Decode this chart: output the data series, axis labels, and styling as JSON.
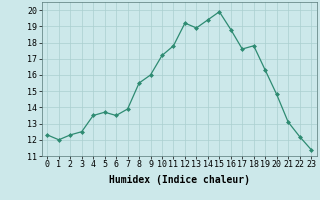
{
  "x": [
    0,
    1,
    2,
    3,
    4,
    5,
    6,
    7,
    8,
    9,
    10,
    11,
    12,
    13,
    14,
    15,
    16,
    17,
    18,
    19,
    20,
    21,
    22,
    23
  ],
  "y": [
    12.3,
    12.0,
    12.3,
    12.5,
    13.5,
    13.7,
    13.5,
    13.9,
    15.5,
    16.0,
    17.2,
    17.8,
    19.2,
    18.9,
    19.4,
    19.9,
    18.8,
    17.6,
    17.8,
    16.3,
    14.8,
    13.1,
    12.2,
    11.4
  ],
  "title": "",
  "xlabel": "Humidex (Indice chaleur)",
  "ylabel": "",
  "xlim": [
    -0.5,
    23.5
  ],
  "ylim": [
    11,
    20.5
  ],
  "yticks": [
    11,
    12,
    13,
    14,
    15,
    16,
    17,
    18,
    19,
    20
  ],
  "xticks": [
    0,
    1,
    2,
    3,
    4,
    5,
    6,
    7,
    8,
    9,
    10,
    11,
    12,
    13,
    14,
    15,
    16,
    17,
    18,
    19,
    20,
    21,
    22,
    23
  ],
  "line_color": "#2e8b72",
  "marker_color": "#2e8b72",
  "bg_color": "#cce8ea",
  "grid_color": "#aacfcf",
  "xlabel_fontsize": 7.0,
  "tick_fontsize": 6.0
}
